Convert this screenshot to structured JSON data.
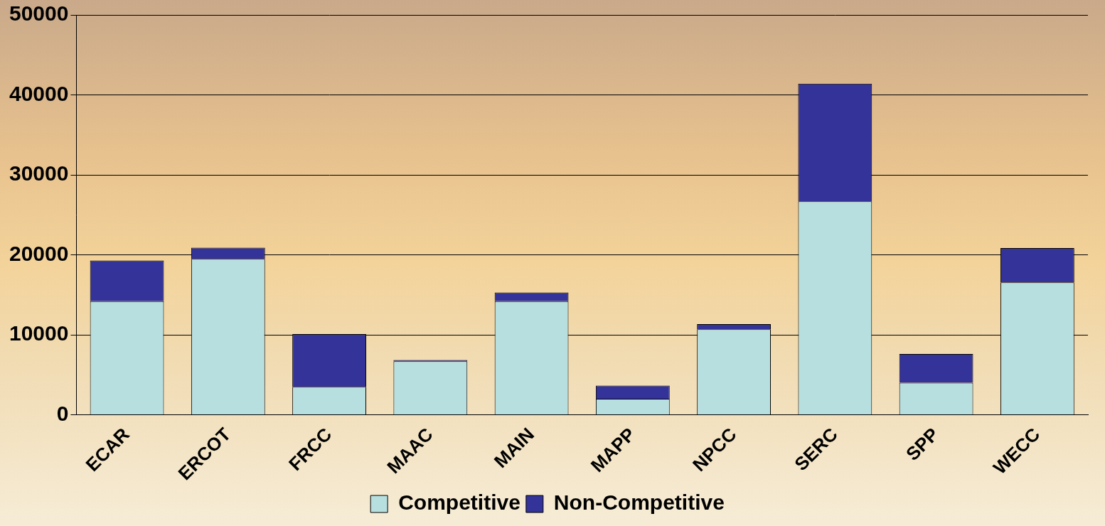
{
  "chart_data": {
    "type": "bar",
    "stacked": true,
    "categories": [
      "ECAR",
      "ERCOT",
      "FRCC",
      "MAAC",
      "MAIN",
      "MAPP",
      "NPCC",
      "SERC",
      "SPP",
      "WECC"
    ],
    "series": [
      {
        "name": "Competitive",
        "color": "#b8dfe0",
        "values": [
          14200,
          19500,
          3500,
          6700,
          14200,
          2000,
          10700,
          26700,
          4000,
          16550
        ]
      },
      {
        "name": "Non-Competitive",
        "color": "#333399",
        "values": [
          5100,
          1400,
          6600,
          150,
          1100,
          1650,
          650,
          14700,
          3600,
          4300
        ]
      }
    ],
    "ylim": [
      0,
      50000
    ],
    "yticks": [
      0,
      10000,
      20000,
      30000,
      40000,
      50000
    ],
    "grid": true,
    "legend": "bottom"
  }
}
